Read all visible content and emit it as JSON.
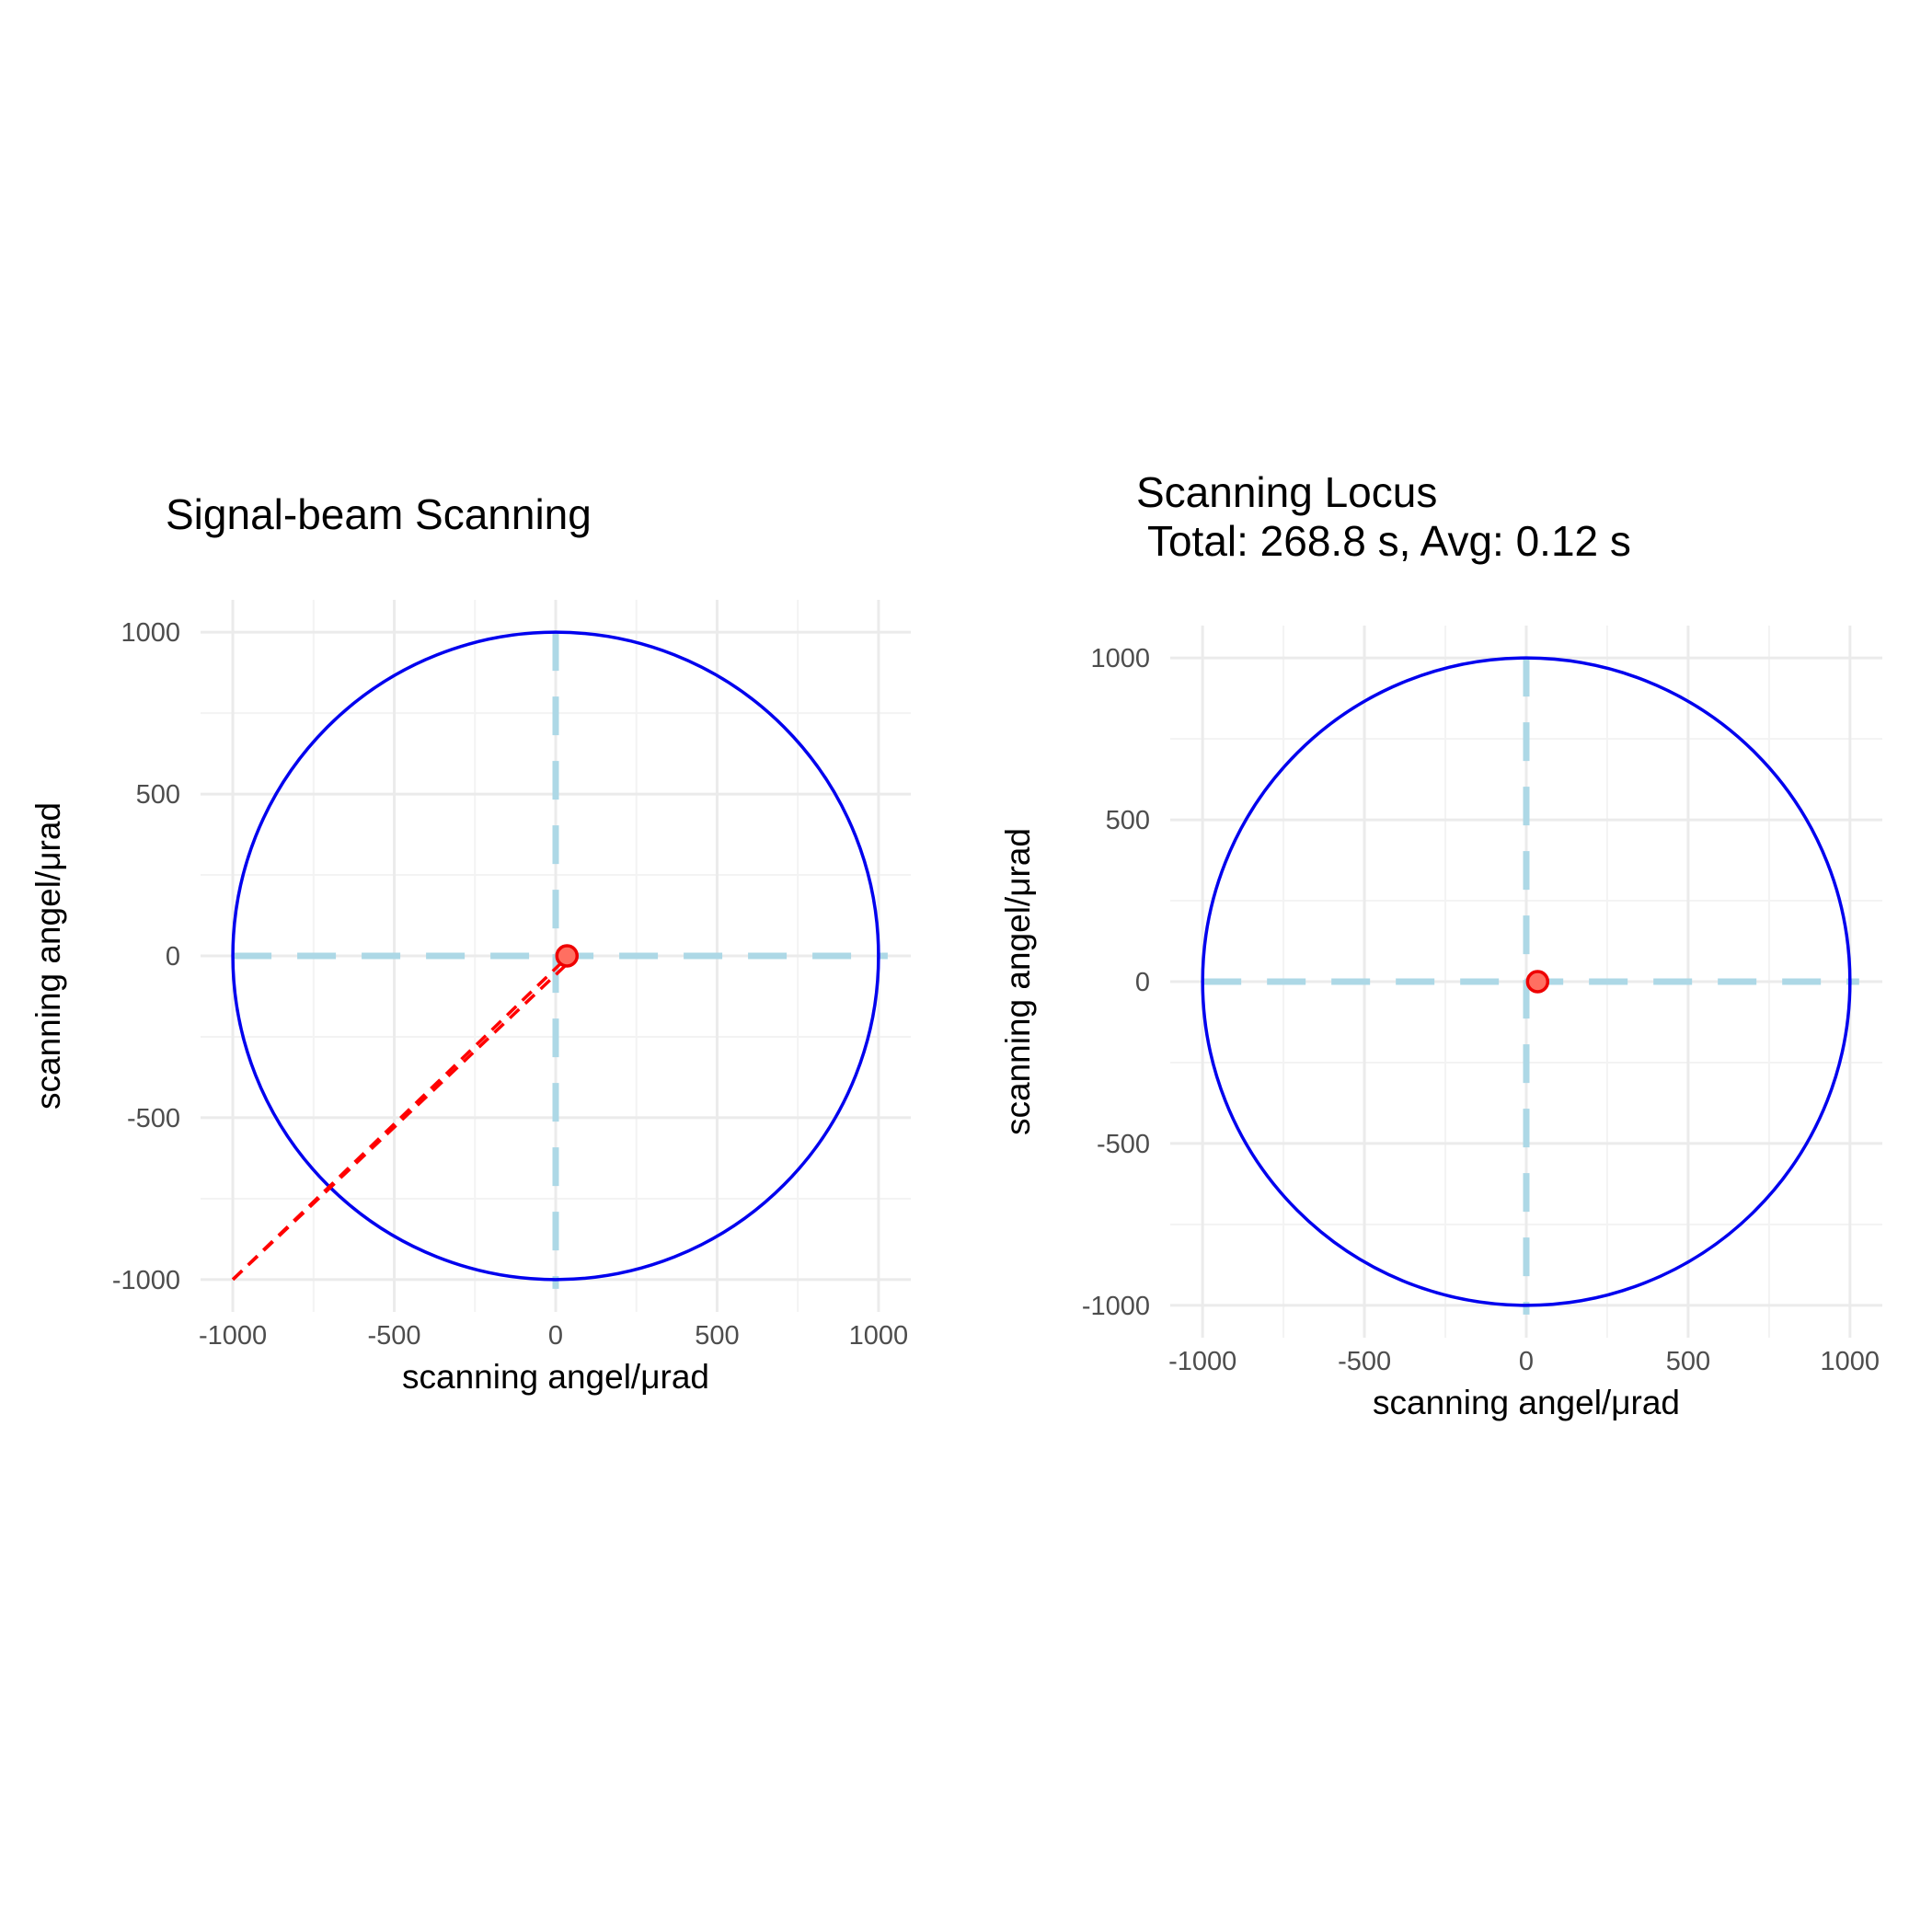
{
  "colors": {
    "background": "#ffffff",
    "grid_major": "#ebebeb",
    "grid_minor": "#f3f3f3",
    "circle": "#0000ee",
    "crosshair": "#add8e6",
    "beam": "#ff0000",
    "point_fill": "#ff6f61",
    "point_stroke": "#ee0000",
    "tick_text": "#4d4d4d",
    "title_text": "#000000"
  },
  "chart_data": [
    {
      "type": "scatter",
      "title_lines": [
        "Signal-beam Scanning"
      ],
      "xlabel": "scanning angel/μrad",
      "ylabel": "scanning angel/μrad",
      "xlim": [
        -1100,
        1100
      ],
      "ylim": [
        -1100,
        1100
      ],
      "x_ticks": [
        -1000,
        -500,
        0,
        500,
        1000
      ],
      "y_ticks": [
        -1000,
        -500,
        0,
        500,
        1000
      ],
      "x_tick_labels": [
        "-1000",
        "-500",
        "0",
        "500",
        "1000"
      ],
      "y_tick_labels": [
        "-1000",
        "-500",
        "0",
        "500",
        "1000"
      ],
      "grid": true,
      "circle": {
        "center": [
          0,
          0
        ],
        "radius": 1000
      },
      "crosshair": {
        "x": 0,
        "y": 0,
        "extent": [
          -1000,
          1000
        ]
      },
      "beam_lines": [
        {
          "from": [
            -1000,
            -1000
          ],
          "to": [
            40,
            0
          ]
        },
        {
          "from": [
            -1000,
            -1000
          ],
          "to": [
            30,
            -30
          ]
        }
      ],
      "points": [
        {
          "x": 35,
          "y": 0
        }
      ]
    },
    {
      "type": "scatter",
      "title_lines": [
        "Scanning Locus",
        " Total: 268.8 s, Avg: 0.12 s"
      ],
      "xlabel": "scanning angel/μrad",
      "ylabel": "scanning angel/μrad",
      "xlim": [
        -1100,
        1100
      ],
      "ylim": [
        -1100,
        1100
      ],
      "x_ticks": [
        -1000,
        -500,
        0,
        500,
        1000
      ],
      "y_ticks": [
        -1000,
        -500,
        0,
        500,
        1000
      ],
      "x_tick_labels": [
        "-1000",
        "-500",
        "0",
        "500",
        "1000"
      ],
      "y_tick_labels": [
        "-1000",
        "-500",
        "0",
        "500",
        "1000"
      ],
      "grid": true,
      "circle": {
        "center": [
          0,
          0
        ],
        "radius": 1000
      },
      "crosshair": {
        "x": 0,
        "y": 0,
        "extent": [
          -1000,
          1000
        ]
      },
      "beam_lines": [],
      "points": [
        {
          "x": 35,
          "y": 0
        }
      ]
    }
  ]
}
